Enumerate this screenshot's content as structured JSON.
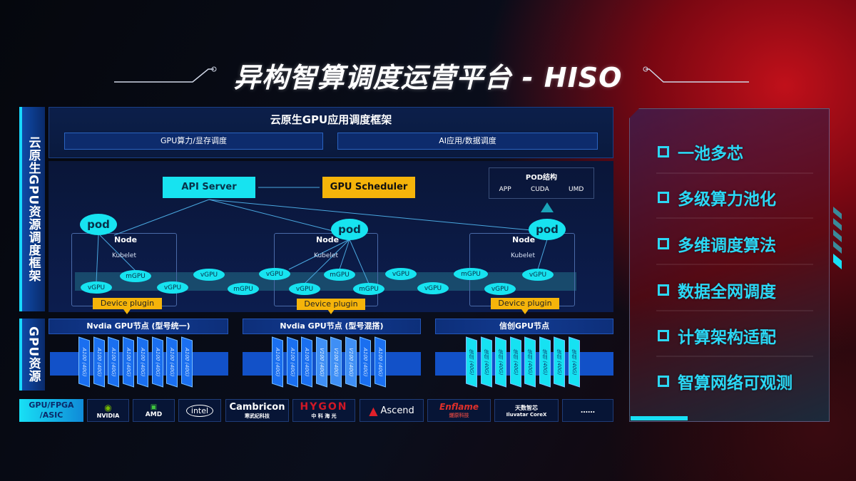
{
  "title": "异构智算调度运营平台 - HISO",
  "left_labels": {
    "framework": "云原生GPU资源调度框架",
    "resources": "GPU资源"
  },
  "framework": {
    "title": "云原生GPU应用调度框架",
    "sub": [
      "GPU算力/显存调度",
      "AI应用/数据调度"
    ]
  },
  "diagram": {
    "api_server": "API Server",
    "gpu_scheduler": "GPU Scheduler",
    "pod_structure": {
      "title": "POD结构",
      "items": [
        "APP",
        "CUDA",
        "UMD"
      ]
    },
    "pod": "pod",
    "node": "Node",
    "kubelet": "Kubelet",
    "device_plugin": "Device plugin",
    "gpus": [
      "vGPU",
      "mGPU",
      "vGPU",
      "vGPU",
      "mGPU",
      "vGPU",
      "vGPU",
      "mGPU",
      "mGPU",
      "vGPU",
      "vGPU",
      "mGPU",
      "vGPU",
      "vGPU"
    ]
  },
  "gpu_nodes": [
    {
      "title": "Nvdia GPU节点 (型号统一)",
      "cards": [
        "A100 (40G)",
        "A100 (40G)",
        "A100 (40G)",
        "A100 (40G)",
        "A100 (40G)",
        "A100 (40G)",
        "A100 (40G)",
        "A100 (40G)"
      ]
    },
    {
      "title": "Nvdia GPU节点 (型号混搭)",
      "cards": [
        "A100 (40G)",
        "A100 (40G)",
        "A100 (40G)",
        "V100 (40G)",
        "V100 (40G)",
        "V100 (40G)",
        "A100 (40G)",
        "A100 (40G)"
      ]
    },
    {
      "title": "信创GPU节点",
      "cards": [
        "信创 (40G)",
        "信创 (40G)",
        "信创 (40G)",
        "信创 (40G)",
        "信创 (40G)",
        "信创 (40G)",
        "信创 (40G)",
        "信创 (40G)"
      ]
    }
  ],
  "vendors": {
    "label": "GPU/FPGA /ASIC",
    "items": [
      {
        "name": "NVIDIA",
        "sub": ""
      },
      {
        "name": "AMD",
        "sub": ""
      },
      {
        "name": "intel",
        "sub": ""
      },
      {
        "name": "Cambricon",
        "sub": "寒武纪科技"
      },
      {
        "name": "HYGON",
        "sub": "中 科 海 光"
      },
      {
        "name": "Ascend",
        "sub": ""
      },
      {
        "name": "Enflame",
        "sub": "燧原科技"
      },
      {
        "name": "天数智芯",
        "sub": "Iluvatar CoreX"
      },
      {
        "name": "……",
        "sub": ""
      }
    ]
  },
  "features": [
    "一池多芯",
    "多级算力池化",
    "多维调度算法",
    "数据全网调度",
    "计算架构适配",
    "智算网络可观测"
  ],
  "colors": {
    "cyan": "#17e3f0",
    "orange": "#f5b40a",
    "blue": "#1251c8"
  }
}
